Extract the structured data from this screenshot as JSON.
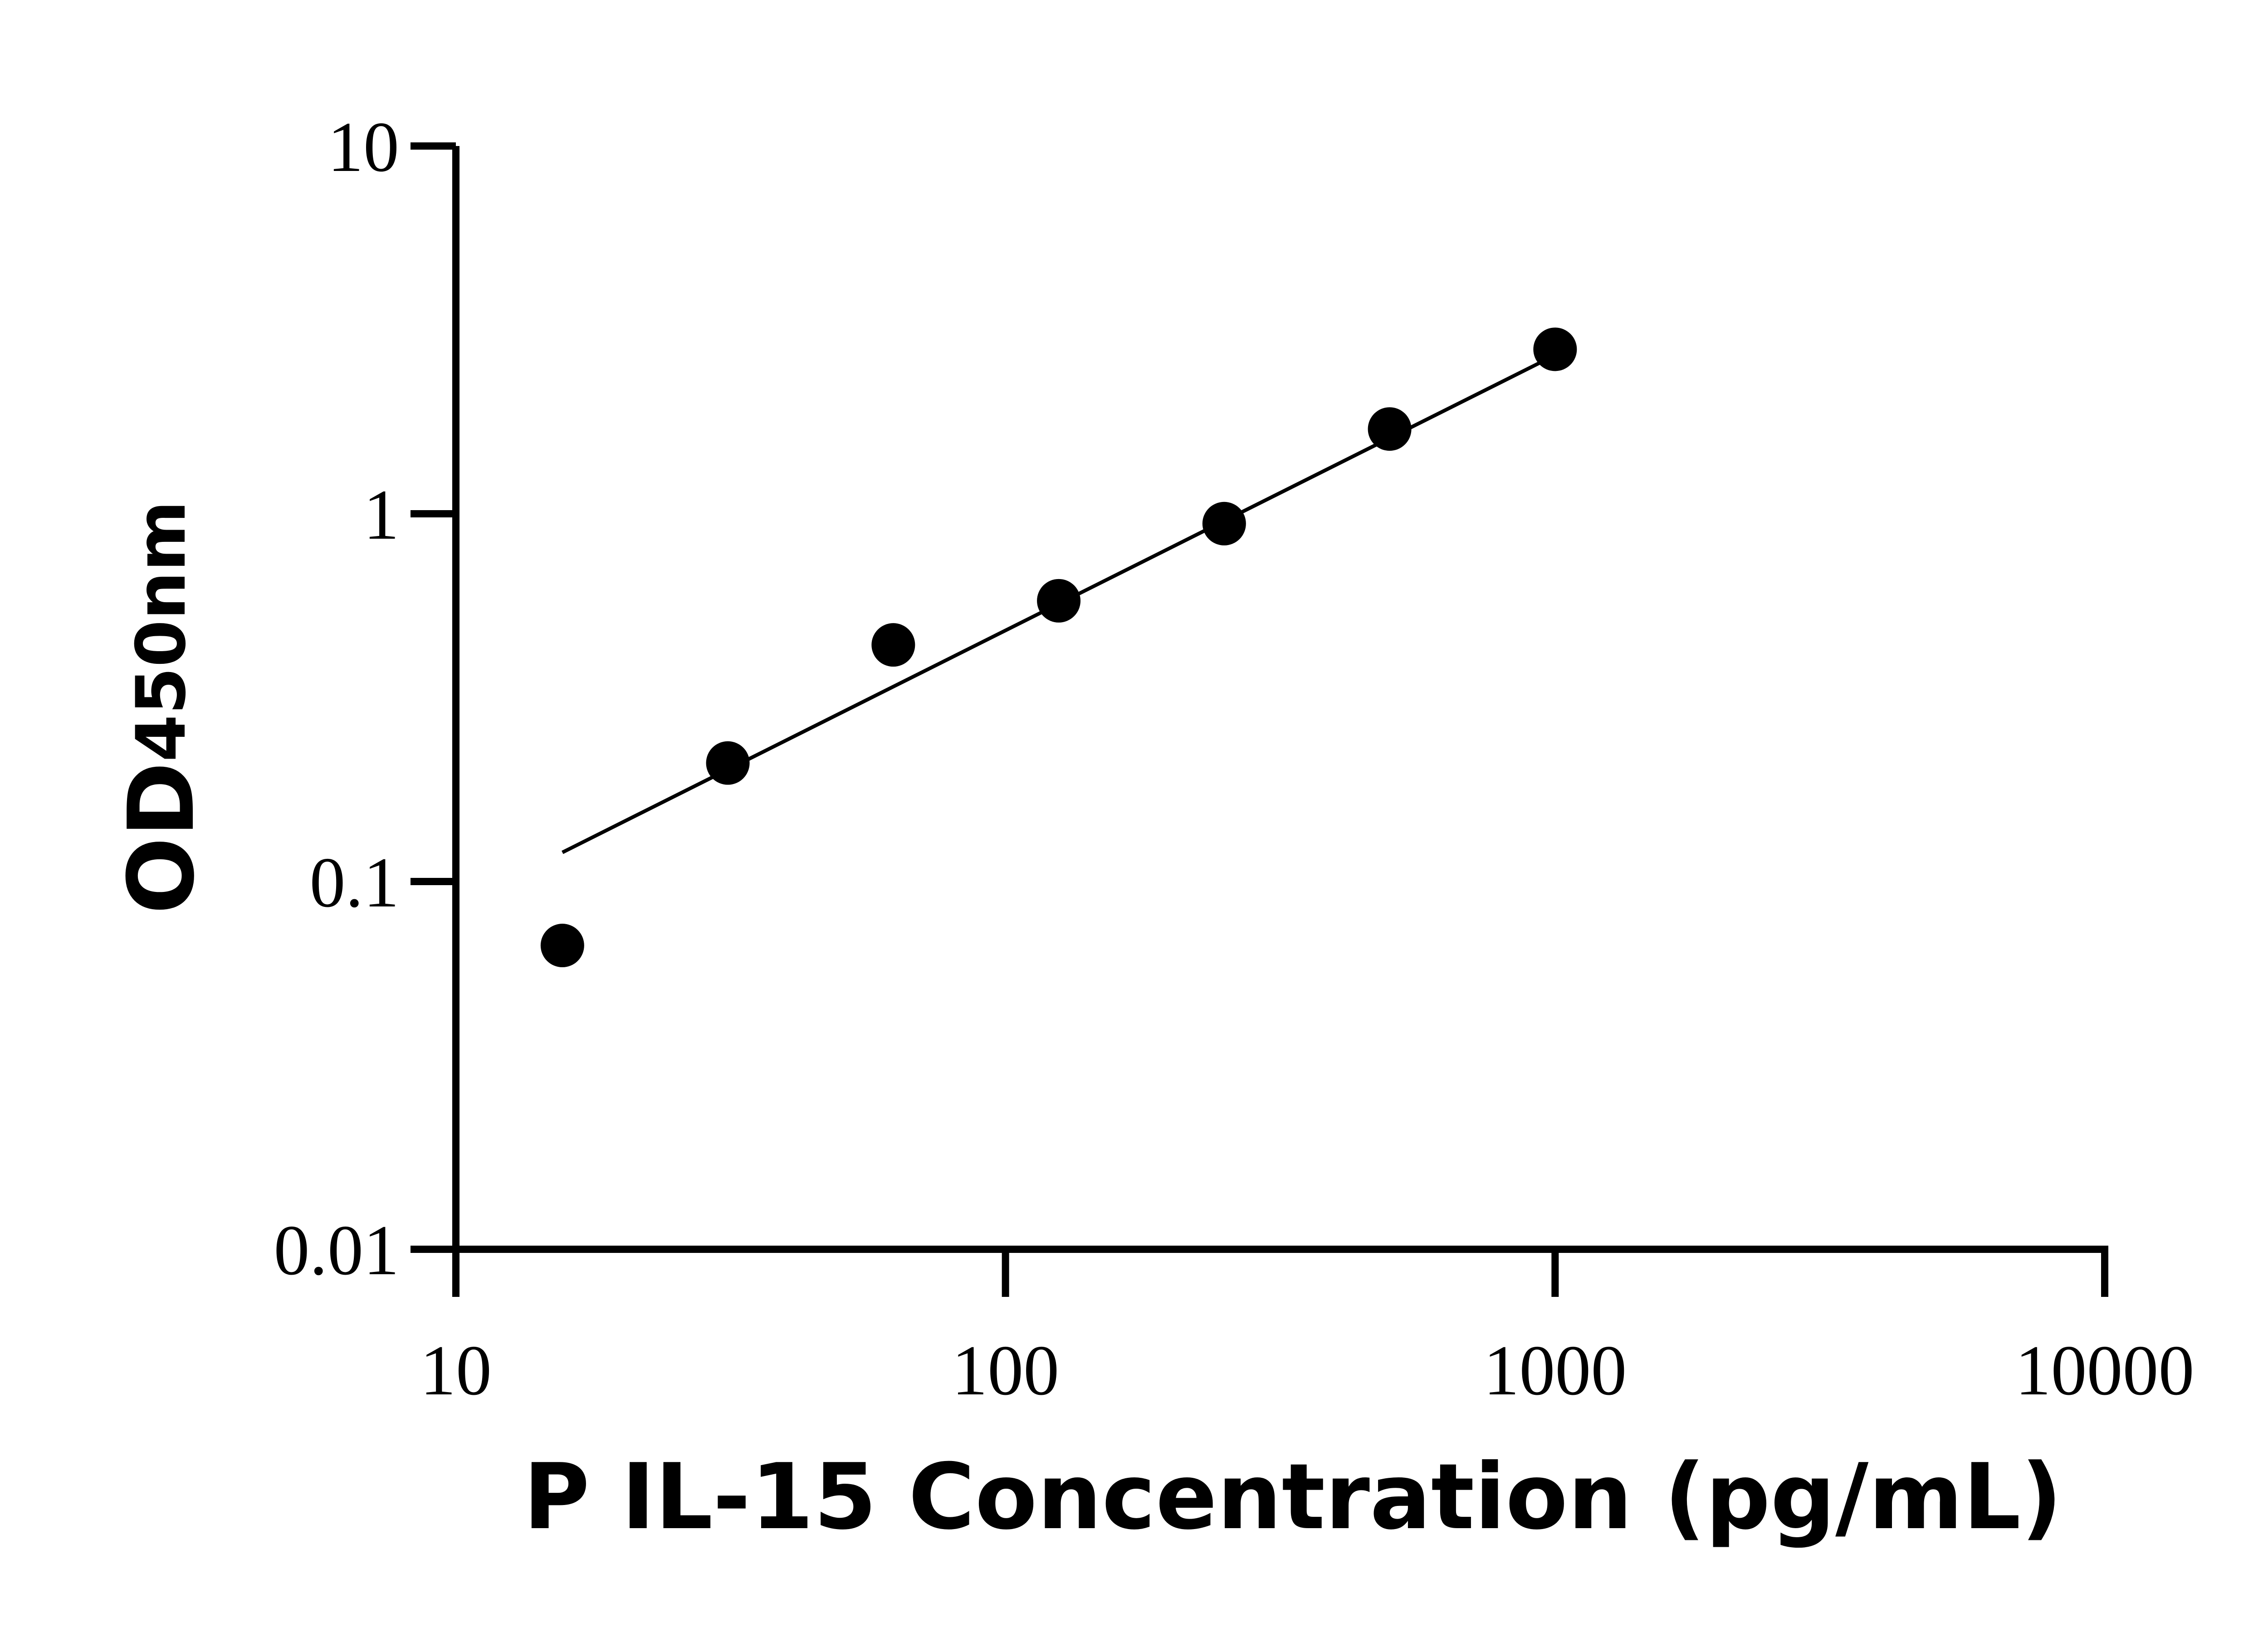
{
  "chart_data": {
    "type": "scatter",
    "title": "",
    "xlabel": "P IL-15 Concentration (pg/mL)",
    "ylabel": {
      "main": "OD",
      "subscript": "450nm"
    },
    "x_scale": "log",
    "y_scale": "log",
    "xlim": [
      10,
      10000
    ],
    "ylim": [
      0.01,
      10
    ],
    "x_ticks": [
      10,
      100,
      1000,
      10000
    ],
    "x_tick_labels": [
      "10",
      "100",
      "1000",
      "10000"
    ],
    "y_ticks": [
      0.01,
      0.1,
      1,
      10
    ],
    "y_tick_labels": [
      "0.01",
      "0.1",
      "1",
      "10"
    ],
    "grid": false,
    "legend": "none",
    "series": [
      {
        "kind": "points",
        "x": [
          15.625,
          31.25,
          62.5,
          125,
          250,
          500,
          1000
        ],
        "y": [
          0.067,
          0.21,
          0.44,
          0.58,
          0.94,
          1.7,
          2.8
        ]
      },
      {
        "kind": "fit-line",
        "x": [
          15.625,
          1000
        ],
        "y": [
          0.12,
          2.7
        ]
      }
    ],
    "colors": {
      "axis": "#000000",
      "points": "#000000",
      "line": "#000000"
    }
  }
}
